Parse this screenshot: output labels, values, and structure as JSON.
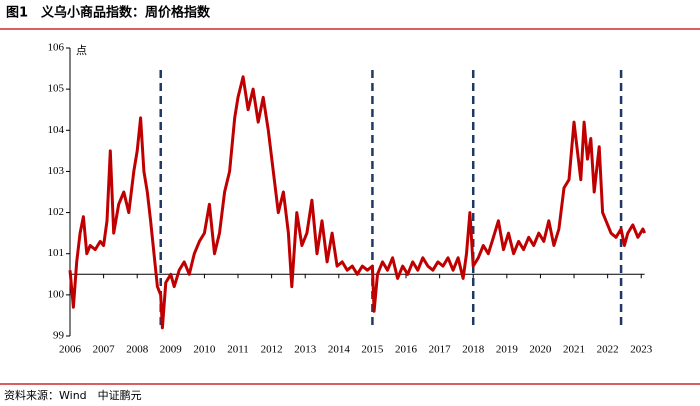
{
  "chart_data": {
    "type": "line",
    "title": "图1　义乌小商品指数：周价格指数",
    "y_label": "点",
    "source": "资料来源：Wind　中证鹏元",
    "x": [
      2006.0,
      2006.1,
      2006.2,
      2006.3,
      2006.4,
      2006.5,
      2006.6,
      2006.75,
      2006.9,
      2007.0,
      2007.1,
      2007.2,
      2007.3,
      2007.45,
      2007.6,
      2007.75,
      2007.9,
      2008.0,
      2008.1,
      2008.2,
      2008.3,
      2008.4,
      2008.5,
      2008.6,
      2008.7,
      2008.75,
      2008.85,
      2009.0,
      2009.1,
      2009.25,
      2009.4,
      2009.55,
      2009.7,
      2009.85,
      2010.0,
      2010.15,
      2010.3,
      2010.45,
      2010.6,
      2010.75,
      2010.9,
      2011.0,
      2011.15,
      2011.3,
      2011.45,
      2011.6,
      2011.75,
      2011.9,
      2012.05,
      2012.2,
      2012.35,
      2012.5,
      2012.6,
      2012.75,
      2012.9,
      2013.05,
      2013.2,
      2013.35,
      2013.5,
      2013.65,
      2013.8,
      2013.95,
      2014.1,
      2014.25,
      2014.4,
      2014.55,
      2014.7,
      2014.85,
      2015.0,
      2015.05,
      2015.15,
      2015.3,
      2015.45,
      2015.6,
      2015.75,
      2015.9,
      2016.05,
      2016.2,
      2016.35,
      2016.5,
      2016.65,
      2016.8,
      2016.95,
      2017.1,
      2017.25,
      2017.4,
      2017.55,
      2017.7,
      2017.8,
      2017.9,
      2018.0,
      2018.15,
      2018.3,
      2018.45,
      2018.6,
      2018.75,
      2018.9,
      2019.05,
      2019.2,
      2019.35,
      2019.5,
      2019.65,
      2019.8,
      2019.95,
      2020.1,
      2020.25,
      2020.4,
      2020.55,
      2020.7,
      2020.85,
      2021.0,
      2021.1,
      2021.2,
      2021.3,
      2021.4,
      2021.5,
      2021.6,
      2021.75,
      2021.85,
      2021.95,
      2022.1,
      2022.25,
      2022.4,
      2022.5,
      2022.6,
      2022.75,
      2022.9,
      2023.05,
      2023.1
    ],
    "series": [
      {
        "name": "周价格指数",
        "color": "#c00000",
        "values": [
          100.6,
          99.7,
          100.8,
          101.5,
          101.9,
          101.0,
          101.2,
          101.1,
          101.3,
          101.2,
          101.8,
          103.5,
          101.5,
          102.2,
          102.5,
          102.0,
          103.0,
          103.5,
          104.3,
          103.0,
          102.5,
          101.8,
          101.0,
          100.2,
          100.0,
          99.2,
          100.3,
          100.5,
          100.2,
          100.6,
          100.8,
          100.5,
          101.0,
          101.3,
          101.5,
          102.2,
          101.0,
          101.5,
          102.5,
          103.0,
          104.3,
          104.8,
          105.3,
          104.5,
          105.0,
          104.2,
          104.8,
          104.0,
          103.0,
          102.0,
          102.5,
          101.5,
          100.2,
          102.0,
          101.2,
          101.5,
          102.3,
          101.0,
          101.8,
          100.8,
          101.5,
          100.7,
          100.8,
          100.6,
          100.7,
          100.5,
          100.7,
          100.6,
          100.7,
          99.6,
          100.5,
          100.8,
          100.6,
          100.9,
          100.4,
          100.7,
          100.5,
          100.8,
          100.6,
          100.9,
          100.7,
          100.6,
          100.8,
          100.7,
          100.9,
          100.6,
          100.9,
          100.4,
          101.0,
          102.0,
          100.7,
          100.9,
          101.2,
          101.0,
          101.4,
          101.8,
          101.1,
          101.5,
          101.0,
          101.3,
          101.1,
          101.4,
          101.2,
          101.5,
          101.3,
          101.8,
          101.2,
          101.6,
          102.6,
          102.8,
          104.2,
          103.5,
          102.8,
          104.2,
          103.3,
          103.8,
          102.5,
          103.6,
          102.0,
          101.8,
          101.5,
          101.4,
          101.6,
          101.2,
          101.5,
          101.7,
          101.4,
          101.6,
          101.5
        ]
      }
    ],
    "xlim": [
      2006,
      2023.1
    ],
    "xticks": [
      2006,
      2007,
      2008,
      2009,
      2010,
      2011,
      2012,
      2013,
      2014,
      2015,
      2016,
      2017,
      2018,
      2019,
      2020,
      2021,
      2022,
      2023
    ],
    "ylim": [
      99,
      106
    ],
    "yticks": [
      99,
      100,
      101,
      102,
      103,
      104,
      105,
      106
    ],
    "x_axis_at": 100.5,
    "vlines": [
      2008.7,
      2015.0,
      2018.0,
      2022.4
    ],
    "vline_color": "#1f3864",
    "grid": false
  }
}
